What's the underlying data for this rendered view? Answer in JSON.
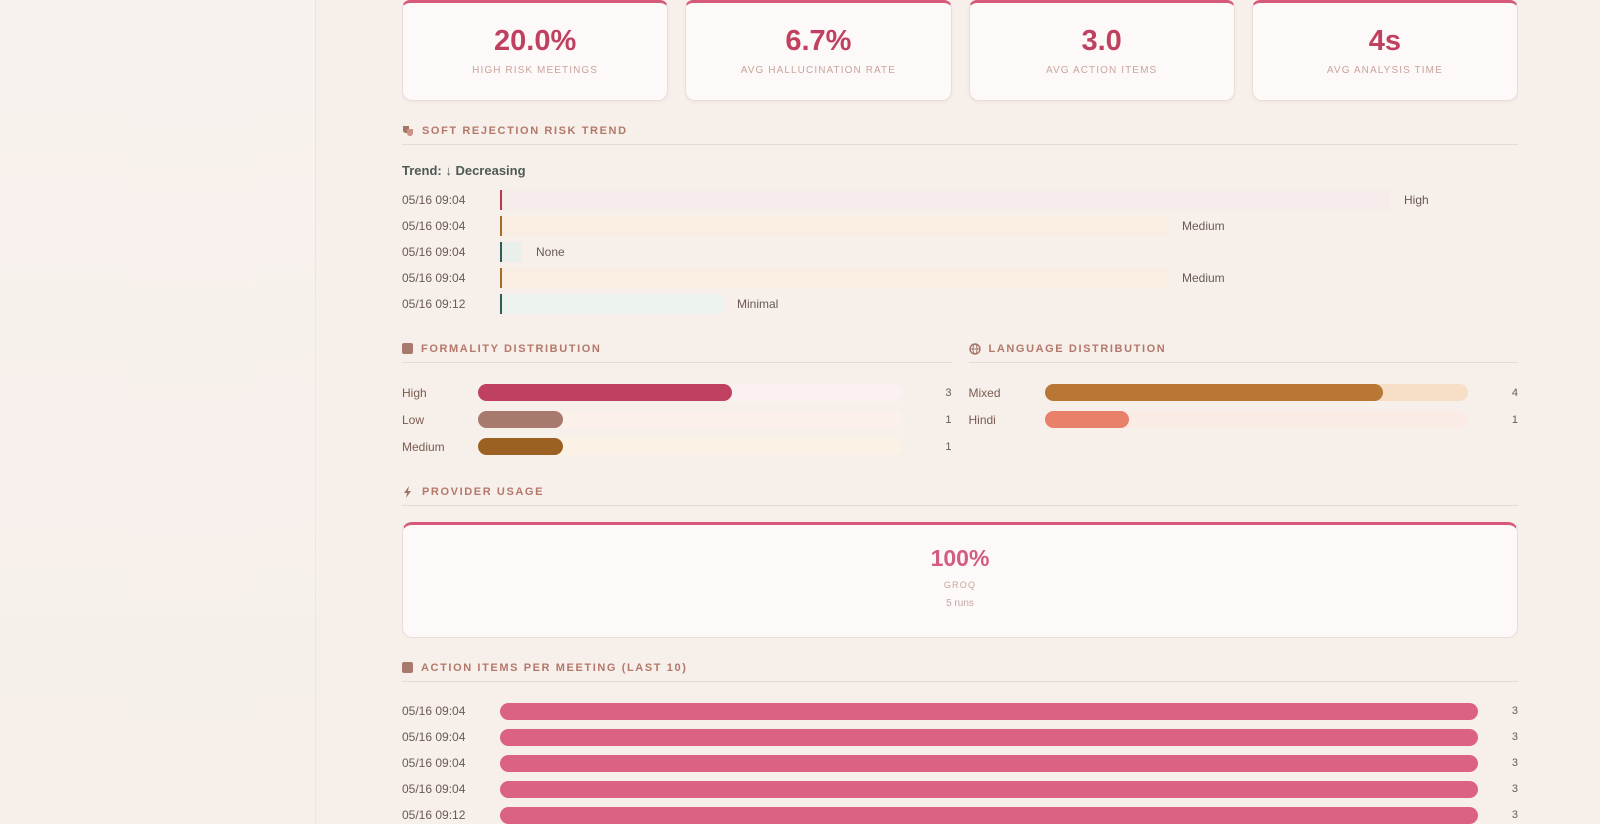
{
  "kpis": [
    {
      "value": "20.0%",
      "label": "HIGH RISK MEETINGS"
    },
    {
      "value": "6.7%",
      "label": "AVG HALLUCINATION RATE"
    },
    {
      "value": "3.0",
      "label": "AVG ACTION ITEMS"
    },
    {
      "value": "4s",
      "label": "AVG ANALYSIS TIME"
    }
  ],
  "risk_trend": {
    "heading": "SOFT REJECTION RISK TREND",
    "trend_text": "Trend: ↓ Decreasing",
    "rows": [
      {
        "date": "05/16 09:04",
        "level": "High",
        "fraction": 1.0,
        "color": "#b33a4e",
        "bg": "#f7ecec"
      },
      {
        "date": "05/16 09:04",
        "level": "Medium",
        "fraction": 0.75,
        "color": "#a86a2c",
        "bg": "#faeee2"
      },
      {
        "date": "05/16 09:04",
        "level": "None",
        "fraction": 0.02,
        "color": "#2e5d52",
        "bg": "#e9f0ec"
      },
      {
        "date": "05/16 09:04",
        "level": "Medium",
        "fraction": 0.75,
        "color": "#a86a2c",
        "bg": "#faeee2"
      },
      {
        "date": "05/16 09:12",
        "level": "Minimal",
        "fraction": 0.25,
        "color": "#2e5d52",
        "bg": "#ecf2ee"
      }
    ]
  },
  "formality": {
    "heading": "FORMALITY DISTRIBUTION",
    "rows": [
      {
        "name": "High",
        "count": "3",
        "fraction": 0.6,
        "color": "#c0405f",
        "track": "#fbf1f3"
      },
      {
        "name": "Low",
        "count": "1",
        "fraction": 0.2,
        "color": "#a87a6e",
        "track": "#fbf0ea"
      },
      {
        "name": "Medium",
        "count": "1",
        "fraction": 0.2,
        "color": "#9b6122",
        "track": "#fbf1e4"
      }
    ]
  },
  "language": {
    "heading": "LANGUAGE DISTRIBUTION",
    "rows": [
      {
        "name": "Mixed",
        "count": "4",
        "fraction": 0.8,
        "color": "#b87735",
        "track": "#f6dfc6"
      },
      {
        "name": "Hindi",
        "count": "1",
        "fraction": 0.2,
        "color": "#e8806a",
        "track": "#fbebe5"
      }
    ]
  },
  "provider": {
    "heading": "PROVIDER USAGE",
    "pct": "100%",
    "name": "GROQ",
    "runs": "5 runs"
  },
  "action_items": {
    "heading": "ACTION ITEMS PER MEETING (LAST 10)",
    "rows": [
      {
        "date": "05/16 09:04",
        "count": "3",
        "fraction": 1.0
      },
      {
        "date": "05/16 09:04",
        "count": "3",
        "fraction": 1.0
      },
      {
        "date": "05/16 09:04",
        "count": "3",
        "fraction": 1.0
      },
      {
        "date": "05/16 09:04",
        "count": "3",
        "fraction": 1.0
      },
      {
        "date": "05/16 09:12",
        "count": "3",
        "fraction": 1.0
      }
    ]
  }
}
